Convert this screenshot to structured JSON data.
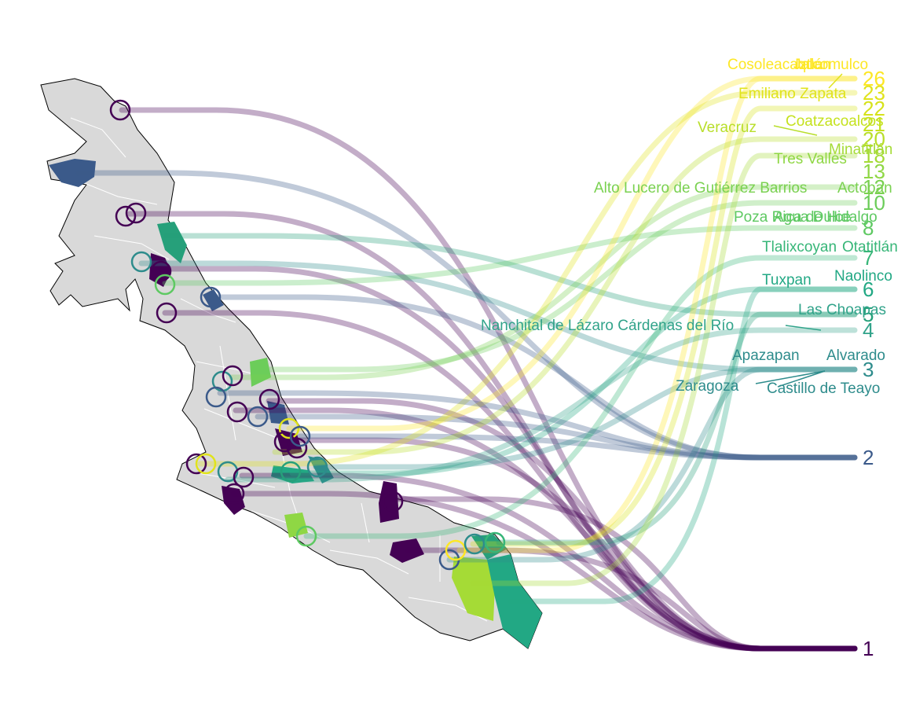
{
  "map": {
    "region": "Veracruz",
    "base_fill": "#d9d9d9",
    "boundary_color": "#ffffff",
    "outline_color": "#000000"
  },
  "palette": {
    "1": "#440154",
    "2": "#3b5a8a",
    "3": "#2e8c8c",
    "4": "#31a38a",
    "5": "#26a07a",
    "6": "#22a884",
    "7": "#37b678",
    "8": "#5ec962",
    "10": "#6ccd5a",
    "12": "#7ad151",
    "13": "#8fd744",
    "18": "#a5db36",
    "20": "#b8de29",
    "21": "#c5e21f",
    "22": "#d6e21a",
    "23": "#e0e31c",
    "26": "#fde725"
  },
  "rank_labels": [
    {
      "text": "1",
      "color": "#440154"
    },
    {
      "text": "2",
      "color": "#3b5a8a"
    },
    {
      "text": "3",
      "color": "#2e8c8c"
    },
    {
      "text": "4",
      "color": "#31a38a"
    },
    {
      "text": "5",
      "color": "#26a07a"
    },
    {
      "text": "6",
      "color": "#22a884"
    },
    {
      "text": "7",
      "color": "#37b678"
    },
    {
      "text": "8",
      "color": "#5ec962"
    },
    {
      "text": "10",
      "color": "#6ccd5a"
    },
    {
      "text": "12",
      "color": "#7ad151"
    },
    {
      "text": "13",
      "color": "#8fd744"
    },
    {
      "text": "18",
      "color": "#a5db36"
    },
    {
      "text": "20",
      "color": "#b8de29"
    },
    {
      "text": "21",
      "color": "#c5e21f"
    },
    {
      "text": "22",
      "color": "#d6e21a"
    },
    {
      "text": "23",
      "color": "#e0e31c"
    },
    {
      "text": "26",
      "color": "#fde725"
    }
  ],
  "municipality_labels": [
    {
      "text": "Cosoleacaque",
      "color": "#fde725"
    },
    {
      "text": "Ixtlán",
      "color": "#fde725"
    },
    {
      "text": "Jalcomulco",
      "color": "#fde725"
    },
    {
      "text": "Emiliano Zapata",
      "color": "#e0e31c"
    },
    {
      "text": "Coatzacoalcos",
      "color": "#c5e21f"
    },
    {
      "text": "Veracruz",
      "color": "#b8de29"
    },
    {
      "text": "Minatitlán",
      "color": "#a5db36"
    },
    {
      "text": "Tres Valles",
      "color": "#8fd744"
    },
    {
      "text": "Alto Lucero de Gutiérrez Barrios",
      "color": "#7ad151"
    },
    {
      "text": "Actopan",
      "color": "#7ad151"
    },
    {
      "text": "Poza Rica de Hidalgo",
      "color": "#5ec962"
    },
    {
      "text": "Agua Dulce",
      "color": "#5ec962"
    },
    {
      "text": "Tlalixcoyan",
      "color": "#37b678"
    },
    {
      "text": "Otatitlán",
      "color": "#37b678"
    },
    {
      "text": "Tuxpan",
      "color": "#22a884"
    },
    {
      "text": "Naolinco",
      "color": "#22a884"
    },
    {
      "text": "Las Choapas",
      "color": "#31a38a"
    },
    {
      "text": "Nanchital de Lázaro Cárdenas del Río",
      "color": "#31a38a"
    },
    {
      "text": "Apazapan",
      "color": "#2e8c8c"
    },
    {
      "text": "Alvarado",
      "color": "#2e8c8c"
    },
    {
      "text": "Zaragoza",
      "color": "#2e8c8c"
    },
    {
      "text": "Castillo de Teayo",
      "color": "#2e8c8c"
    }
  ]
}
